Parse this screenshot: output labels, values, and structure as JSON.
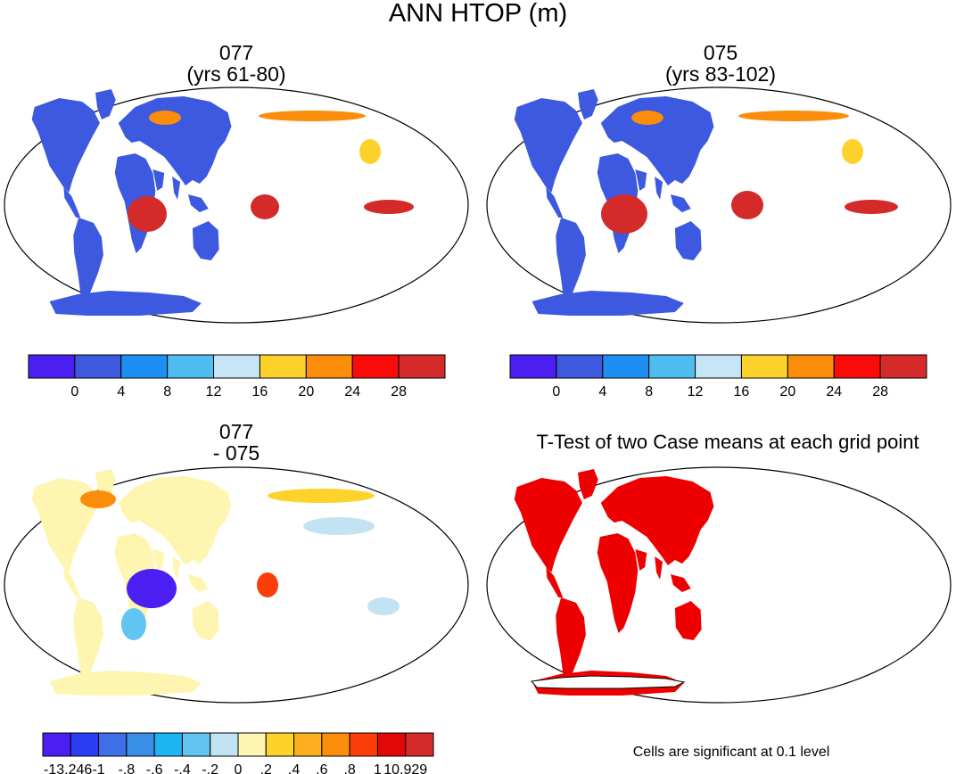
{
  "title": "ANN HTOP (m)",
  "panels": {
    "top_left": {
      "line1": "077",
      "line2": "(yrs 61-80)"
    },
    "top_right": {
      "line1": "075",
      "line2": "(yrs 83-102)"
    },
    "bottom_left": {
      "line1": "077",
      "line2": "- 075"
    },
    "bottom_right": {
      "title": "T-Test of two Case means at each grid point"
    }
  },
  "colorbars": {
    "main": {
      "colors": [
        "#4b1ff2",
        "#3c59e0",
        "#1e8ff2",
        "#50bdf0",
        "#c6e6f6",
        "#fdd22b",
        "#fb8d0b",
        "#fb0a0a",
        "#d42a2a"
      ],
      "labels": [
        "0",
        "4",
        "8",
        "12",
        "16",
        "20",
        "24",
        "28"
      ]
    },
    "diff": {
      "colors": [
        "#4b1ff2",
        "#2b3df2",
        "#3f6fe6",
        "#3a8fe8",
        "#1db4f4",
        "#62c4f0",
        "#c1e3f2",
        "#fdf5b0",
        "#fdd22b",
        "#fcb020",
        "#fb8d0b",
        "#fb3e0a",
        "#e20808",
        "#d42a2a"
      ],
      "labels": [
        "-13.246",
        "-1",
        "-.8",
        "-.6",
        "-.4",
        "-.2",
        "0",
        ".2",
        ".4",
        ".6",
        ".8",
        "1",
        "10.929"
      ]
    }
  },
  "significance_note": "Cells are significant at 0.1 level",
  "map_colors": {
    "ocean": "#ffffff",
    "ice_top": "#3c59e0",
    "ice_diff": "#fdf5b0",
    "sig": "#ee0000"
  }
}
